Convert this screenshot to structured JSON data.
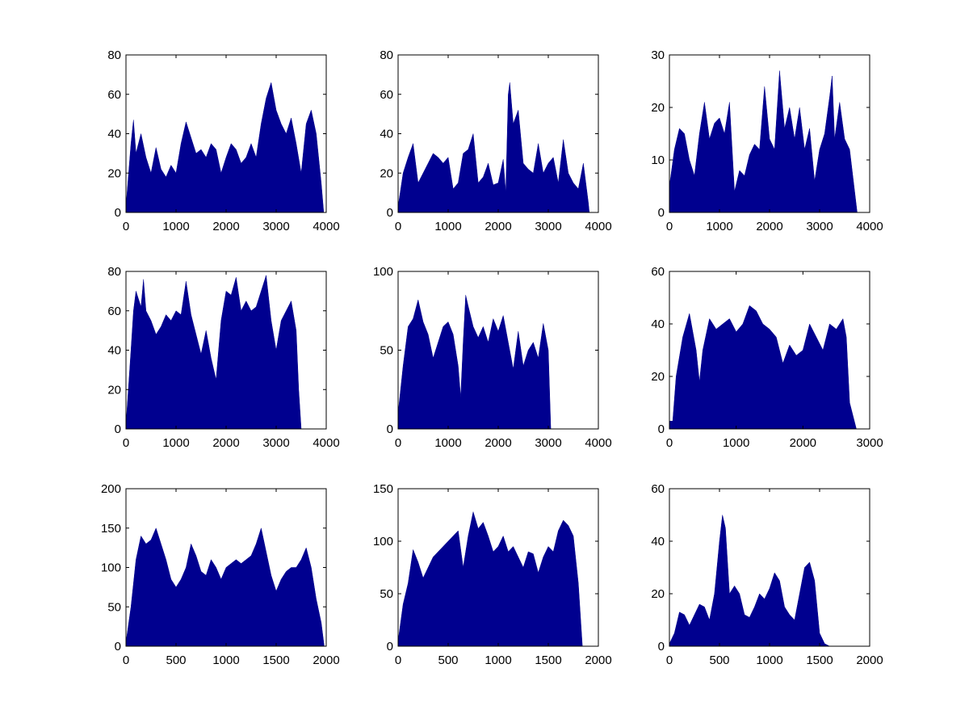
{
  "colors": {
    "fill": "#00008F",
    "axis": "#000000",
    "background": "#FFFFFF"
  },
  "chart_data": [
    {
      "type": "area",
      "title": "",
      "xlabel": "",
      "ylabel": "",
      "xlim": [
        0,
        4000
      ],
      "ylim": [
        0,
        80
      ],
      "xticks": [
        "0",
        "1000",
        "2000",
        "3000",
        "4000"
      ],
      "yticks": [
        "0",
        "20",
        "40",
        "60",
        "80"
      ],
      "x": [
        0,
        100,
        150,
        200,
        300,
        400,
        500,
        600,
        700,
        800,
        900,
        1000,
        1100,
        1200,
        1300,
        1400,
        1500,
        1600,
        1700,
        1800,
        1900,
        2000,
        2100,
        2200,
        2300,
        2400,
        2500,
        2600,
        2700,
        2800,
        2900,
        3000,
        3100,
        3200,
        3300,
        3400,
        3500,
        3600,
        3700,
        3800,
        3900,
        3950
      ],
      "y": [
        3,
        35,
        47,
        30,
        40,
        28,
        20,
        33,
        22,
        18,
        24,
        20,
        35,
        46,
        38,
        30,
        32,
        28,
        35,
        32,
        20,
        28,
        35,
        32,
        25,
        28,
        35,
        28,
        45,
        58,
        66,
        52,
        45,
        40,
        48,
        35,
        20,
        45,
        52,
        40,
        15,
        0
      ]
    },
    {
      "type": "area",
      "title": "",
      "xlabel": "",
      "ylabel": "",
      "xlim": [
        0,
        4000
      ],
      "ylim": [
        0,
        80
      ],
      "xticks": [
        "0",
        "1000",
        "2000",
        "3000",
        "4000"
      ],
      "yticks": [
        "0",
        "20",
        "40",
        "60",
        "80"
      ],
      "x": [
        0,
        100,
        200,
        300,
        400,
        500,
        600,
        700,
        800,
        900,
        1000,
        1100,
        1200,
        1300,
        1400,
        1500,
        1600,
        1700,
        1800,
        1900,
        2000,
        2100,
        2150,
        2200,
        2230,
        2300,
        2400,
        2500,
        2600,
        2700,
        2800,
        2900,
        3000,
        3100,
        3200,
        3300,
        3400,
        3500,
        3600,
        3700,
        3800,
        3820
      ],
      "y": [
        3,
        20,
        28,
        35,
        15,
        20,
        25,
        30,
        28,
        25,
        28,
        12,
        15,
        30,
        32,
        40,
        15,
        18,
        25,
        14,
        15,
        27,
        10,
        60,
        66,
        45,
        52,
        25,
        22,
        20,
        35,
        20,
        25,
        28,
        15,
        37,
        20,
        15,
        12,
        25,
        5,
        0
      ]
    },
    {
      "type": "area",
      "title": "",
      "xlabel": "",
      "ylabel": "",
      "xlim": [
        0,
        4000
      ],
      "ylim": [
        0,
        30
      ],
      "xticks": [
        "0",
        "1000",
        "2000",
        "3000",
        "4000"
      ],
      "yticks": [
        "0",
        "10",
        "20",
        "30"
      ],
      "x": [
        0,
        100,
        200,
        300,
        400,
        500,
        600,
        700,
        800,
        900,
        1000,
        1100,
        1200,
        1300,
        1400,
        1500,
        1600,
        1700,
        1800,
        1900,
        2000,
        2100,
        2200,
        2300,
        2400,
        2500,
        2600,
        2700,
        2800,
        2900,
        3000,
        3100,
        3200,
        3250,
        3300,
        3400,
        3500,
        3600,
        3700,
        3750
      ],
      "y": [
        5,
        12,
        16,
        15,
        10,
        7,
        15,
        21,
        14,
        17,
        18,
        15,
        21,
        4,
        8,
        7,
        11,
        13,
        12,
        24,
        14,
        12,
        27,
        16,
        20,
        14,
        20,
        12,
        16,
        6,
        12,
        15,
        22,
        26,
        14,
        21,
        14,
        12,
        4,
        0
      ]
    },
    {
      "type": "area",
      "title": "",
      "xlabel": "",
      "ylabel": "",
      "xlim": [
        0,
        4000
      ],
      "ylim": [
        0,
        80
      ],
      "xticks": [
        "0",
        "1000",
        "2000",
        "3000",
        "4000"
      ],
      "yticks": [
        "0",
        "20",
        "40",
        "60",
        "80"
      ],
      "x": [
        0,
        100,
        150,
        200,
        300,
        350,
        400,
        500,
        600,
        700,
        800,
        900,
        1000,
        1100,
        1200,
        1300,
        1400,
        1500,
        1600,
        1700,
        1800,
        1900,
        2000,
        2100,
        2200,
        2300,
        2400,
        2500,
        2600,
        2700,
        2800,
        2900,
        3000,
        3100,
        3200,
        3300,
        3400,
        3450,
        3500
      ],
      "y": [
        2,
        40,
        60,
        70,
        62,
        76,
        60,
        55,
        48,
        52,
        58,
        55,
        60,
        58,
        75,
        58,
        48,
        38,
        50,
        36,
        25,
        55,
        70,
        68,
        77,
        60,
        65,
        60,
        62,
        70,
        78,
        55,
        40,
        55,
        60,
        65,
        50,
        20,
        0
      ]
    },
    {
      "type": "area",
      "title": "",
      "xlabel": "",
      "ylabel": "",
      "xlim": [
        0,
        4000
      ],
      "ylim": [
        0,
        100
      ],
      "xticks": [
        "0",
        "1000",
        "2000",
        "3000",
        "4000"
      ],
      "yticks": [
        "0",
        "50",
        "100"
      ],
      "x": [
        0,
        100,
        200,
        300,
        400,
        500,
        600,
        700,
        800,
        900,
        1000,
        1100,
        1200,
        1250,
        1300,
        1350,
        1400,
        1500,
        1600,
        1700,
        1800,
        1900,
        2000,
        2100,
        2200,
        2300,
        2400,
        2500,
        2600,
        2700,
        2800,
        2900,
        3000,
        3050
      ],
      "y": [
        10,
        40,
        65,
        70,
        82,
        68,
        60,
        45,
        55,
        65,
        68,
        60,
        40,
        20,
        55,
        85,
        78,
        65,
        58,
        65,
        55,
        70,
        62,
        72,
        55,
        38,
        62,
        40,
        50,
        55,
        45,
        67,
        50,
        0
      ]
    },
    {
      "type": "area",
      "title": "",
      "xlabel": "",
      "ylabel": "",
      "xlim": [
        0,
        3000
      ],
      "ylim": [
        0,
        60
      ],
      "xticks": [
        "0",
        "1000",
        "2000",
        "3000"
      ],
      "yticks": [
        "0",
        "20",
        "40",
        "60"
      ],
      "x": [
        0,
        50,
        100,
        200,
        300,
        400,
        450,
        500,
        600,
        700,
        800,
        900,
        1000,
        1100,
        1200,
        1300,
        1400,
        1500,
        1600,
        1700,
        1800,
        1900,
        2000,
        2100,
        2200,
        2300,
        2400,
        2500,
        2600,
        2650,
        2700,
        2800
      ],
      "y": [
        3,
        3,
        20,
        35,
        44,
        30,
        18,
        30,
        42,
        38,
        40,
        42,
        37,
        40,
        47,
        45,
        40,
        38,
        35,
        25,
        32,
        28,
        30,
        40,
        35,
        30,
        40,
        38,
        42,
        35,
        10,
        0
      ]
    },
    {
      "type": "area",
      "title": "",
      "xlabel": "",
      "ylabel": "",
      "xlim": [
        0,
        2000
      ],
      "ylim": [
        0,
        200
      ],
      "xticks": [
        "0",
        "500",
        "1000",
        "1500",
        "2000"
      ],
      "yticks": [
        "0",
        "50",
        "100",
        "150",
        "200"
      ],
      "x": [
        0,
        50,
        100,
        150,
        200,
        250,
        300,
        350,
        400,
        450,
        500,
        550,
        600,
        650,
        700,
        750,
        800,
        850,
        900,
        950,
        1000,
        1050,
        1100,
        1150,
        1200,
        1250,
        1300,
        1350,
        1400,
        1450,
        1500,
        1550,
        1600,
        1650,
        1700,
        1750,
        1800,
        1850,
        1900,
        1950,
        1980
      ],
      "y": [
        5,
        50,
        110,
        140,
        130,
        135,
        150,
        130,
        110,
        85,
        75,
        85,
        100,
        130,
        115,
        95,
        90,
        110,
        100,
        85,
        100,
        105,
        110,
        105,
        110,
        115,
        130,
        150,
        120,
        90,
        70,
        85,
        95,
        100,
        100,
        110,
        125,
        100,
        60,
        30,
        0
      ]
    },
    {
      "type": "area",
      "title": "",
      "xlabel": "",
      "ylabel": "",
      "xlim": [
        0,
        2000
      ],
      "ylim": [
        0,
        150
      ],
      "xticks": [
        "0",
        "500",
        "1000",
        "1500",
        "2000"
      ],
      "yticks": [
        "0",
        "50",
        "100",
        "150"
      ],
      "x": [
        0,
        50,
        100,
        150,
        200,
        250,
        300,
        350,
        400,
        450,
        500,
        550,
        600,
        650,
        700,
        750,
        800,
        850,
        900,
        950,
        1000,
        1050,
        1100,
        1150,
        1200,
        1250,
        1300,
        1350,
        1400,
        1450,
        1500,
        1550,
        1600,
        1650,
        1700,
        1750,
        1800,
        1840
      ],
      "y": [
        5,
        40,
        60,
        92,
        80,
        65,
        75,
        85,
        90,
        95,
        100,
        105,
        110,
        75,
        105,
        128,
        112,
        118,
        105,
        90,
        95,
        105,
        90,
        95,
        85,
        75,
        90,
        88,
        70,
        85,
        95,
        90,
        110,
        120,
        115,
        105,
        60,
        0
      ]
    },
    {
      "type": "area",
      "title": "",
      "xlabel": "",
      "ylabel": "",
      "xlim": [
        0,
        2000
      ],
      "ylim": [
        0,
        60
      ],
      "xticks": [
        "0",
        "500",
        "1000",
        "1500",
        "2000"
      ],
      "yticks": [
        "0",
        "20",
        "40",
        "60"
      ],
      "x": [
        0,
        50,
        100,
        150,
        200,
        250,
        300,
        350,
        400,
        450,
        500,
        530,
        560,
        600,
        650,
        700,
        750,
        800,
        850,
        900,
        950,
        1000,
        1050,
        1100,
        1150,
        1200,
        1250,
        1300,
        1350,
        1400,
        1450,
        1500,
        1550,
        1600
      ],
      "y": [
        1,
        5,
        13,
        12,
        8,
        12,
        16,
        15,
        10,
        20,
        40,
        50,
        45,
        20,
        23,
        20,
        12,
        11,
        15,
        20,
        18,
        22,
        28,
        25,
        15,
        12,
        10,
        20,
        30,
        32,
        25,
        5,
        1,
        0
      ]
    }
  ]
}
